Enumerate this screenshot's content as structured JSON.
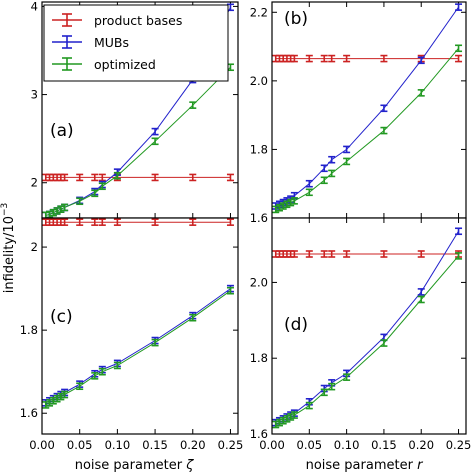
{
  "chart_data": [
    {
      "id": "a",
      "type": "line",
      "panel_label": "(a)",
      "xlim": [
        0,
        0.26
      ],
      "ylim": [
        1.6,
        4.05
      ],
      "yticks": [
        2,
        3,
        4
      ],
      "ytick_labels": [
        "2",
        "3",
        "4"
      ],
      "series": [
        {
          "name": "product bases",
          "color": "#cc2222",
          "x": [
            0.005,
            0.01,
            0.015,
            0.02,
            0.025,
            0.03,
            0.05,
            0.07,
            0.08,
            0.1,
            0.15,
            0.2,
            0.25
          ],
          "y": [
            2.06,
            2.06,
            2.06,
            2.06,
            2.06,
            2.06,
            2.06,
            2.06,
            2.06,
            2.06,
            2.06,
            2.06,
            2.06
          ]
        },
        {
          "name": "MUBs",
          "color": "#2222cc",
          "x": [
            0.005,
            0.01,
            0.015,
            0.02,
            0.025,
            0.03,
            0.05,
            0.07,
            0.08,
            0.1,
            0.15,
            0.2,
            0.25
          ],
          "y": [
            1.63,
            1.64,
            1.66,
            1.68,
            1.7,
            1.72,
            1.8,
            1.9,
            1.98,
            2.12,
            2.58,
            3.17,
            3.99
          ]
        },
        {
          "name": "optimized",
          "color": "#229922",
          "x": [
            0.005,
            0.01,
            0.015,
            0.02,
            0.025,
            0.03,
            0.05,
            0.07,
            0.08,
            0.1,
            0.15,
            0.2,
            0.25
          ],
          "y": [
            1.63,
            1.64,
            1.66,
            1.68,
            1.7,
            1.72,
            1.79,
            1.88,
            1.96,
            2.08,
            2.47,
            2.88,
            3.31
          ]
        }
      ]
    },
    {
      "id": "b",
      "type": "line",
      "panel_label": "(b)",
      "xlim": [
        0,
        0.26
      ],
      "ylim": [
        1.6,
        2.23
      ],
      "yticks": [
        1.6,
        1.8,
        2.0,
        2.2
      ],
      "ytick_labels": [
        "1.6",
        "1.8",
        "2.0",
        "2.2"
      ],
      "series": [
        {
          "name": "product bases",
          "color": "#cc2222",
          "x": [
            0.005,
            0.01,
            0.015,
            0.02,
            0.025,
            0.03,
            0.05,
            0.07,
            0.08,
            0.1,
            0.15,
            0.2,
            0.25
          ],
          "y": [
            2.065,
            2.065,
            2.065,
            2.065,
            2.065,
            2.065,
            2.065,
            2.065,
            2.065,
            2.065,
            2.065,
            2.065,
            2.065
          ]
        },
        {
          "name": "MUBs",
          "color": "#2222cc",
          "x": [
            0.005,
            0.01,
            0.015,
            0.02,
            0.025,
            0.03,
            0.05,
            0.07,
            0.08,
            0.1,
            0.15,
            0.2,
            0.25
          ],
          "y": [
            1.635,
            1.64,
            1.645,
            1.65,
            1.655,
            1.665,
            1.7,
            1.745,
            1.77,
            1.8,
            1.92,
            2.06,
            2.215
          ]
        },
        {
          "name": "optimized",
          "color": "#229922",
          "x": [
            0.005,
            0.01,
            0.015,
            0.02,
            0.025,
            0.03,
            0.05,
            0.07,
            0.08,
            0.1,
            0.15,
            0.2,
            0.25
          ],
          "y": [
            1.625,
            1.63,
            1.635,
            1.64,
            1.645,
            1.65,
            1.675,
            1.71,
            1.73,
            1.765,
            1.855,
            1.965,
            2.095
          ]
        }
      ]
    },
    {
      "id": "c",
      "type": "line",
      "panel_label": "(c)",
      "xlim": [
        0,
        0.26
      ],
      "ylim": [
        1.55,
        2.07
      ],
      "yticks": [
        1.6,
        1.8,
        2.0
      ],
      "ytick_labels": [
        "1.6",
        "1.8",
        "2"
      ],
      "xticks": [
        0,
        0.05,
        0.1,
        0.15,
        0.2,
        0.25
      ],
      "xtick_labels": [
        "0.00",
        "0.05",
        "0.10",
        "0.15",
        "0.20",
        "0.25"
      ],
      "xlabel": "noise parameter ζ",
      "series": [
        {
          "name": "product bases",
          "color": "#cc2222",
          "x": [
            0.005,
            0.01,
            0.015,
            0.02,
            0.025,
            0.03,
            0.05,
            0.07,
            0.08,
            0.1,
            0.15,
            0.2,
            0.25
          ],
          "y": [
            2.06,
            2.06,
            2.06,
            2.06,
            2.06,
            2.06,
            2.06,
            2.06,
            2.06,
            2.06,
            2.06,
            2.06,
            2.06
          ]
        },
        {
          "name": "MUBs",
          "color": "#2222cc",
          "x": [
            0.005,
            0.01,
            0.015,
            0.02,
            0.025,
            0.03,
            0.05,
            0.07,
            0.08,
            0.1,
            0.15,
            0.2,
            0.25
          ],
          "y": [
            1.625,
            1.63,
            1.635,
            1.64,
            1.645,
            1.65,
            1.67,
            1.695,
            1.705,
            1.72,
            1.775,
            1.835,
            1.9
          ]
        },
        {
          "name": "optimized",
          "color": "#229922",
          "x": [
            0.005,
            0.01,
            0.015,
            0.02,
            0.025,
            0.03,
            0.05,
            0.07,
            0.08,
            0.1,
            0.15,
            0.2,
            0.25
          ],
          "y": [
            1.62,
            1.625,
            1.63,
            1.635,
            1.64,
            1.645,
            1.665,
            1.69,
            1.7,
            1.715,
            1.77,
            1.83,
            1.895
          ]
        }
      ]
    },
    {
      "id": "d",
      "type": "line",
      "panel_label": "(d)",
      "xlim": [
        0,
        0.26
      ],
      "ylim": [
        1.6,
        2.17
      ],
      "yticks": [
        1.6,
        1.8,
        2.0
      ],
      "ytick_labels": [
        "1.6",
        "1.8",
        "2.0"
      ],
      "xticks": [
        0,
        0.05,
        0.1,
        0.15,
        0.2,
        0.25
      ],
      "xtick_labels": [
        "0.00",
        "0.05",
        "0.10",
        "0.15",
        "0.20",
        "0.25"
      ],
      "xlabel": "noise parameter r",
      "series": [
        {
          "name": "product bases",
          "color": "#cc2222",
          "x": [
            0.005,
            0.01,
            0.015,
            0.02,
            0.025,
            0.03,
            0.05,
            0.07,
            0.08,
            0.1,
            0.15,
            0.2,
            0.25
          ],
          "y": [
            2.075,
            2.075,
            2.075,
            2.075,
            2.075,
            2.075,
            2.075,
            2.075,
            2.075,
            2.075,
            2.075,
            2.075,
            2.075
          ]
        },
        {
          "name": "MUBs",
          "color": "#2222cc",
          "x": [
            0.005,
            0.01,
            0.015,
            0.02,
            0.025,
            0.03,
            0.05,
            0.07,
            0.08,
            0.1,
            0.15,
            0.2,
            0.25
          ],
          "y": [
            1.63,
            1.635,
            1.64,
            1.645,
            1.65,
            1.655,
            1.685,
            1.72,
            1.735,
            1.76,
            1.855,
            1.975,
            2.135
          ]
        },
        {
          "name": "optimized",
          "color": "#229922",
          "x": [
            0.005,
            0.01,
            0.015,
            0.02,
            0.025,
            0.03,
            0.05,
            0.07,
            0.08,
            0.1,
            0.15,
            0.2,
            0.25
          ],
          "y": [
            1.625,
            1.63,
            1.635,
            1.64,
            1.645,
            1.65,
            1.675,
            1.71,
            1.725,
            1.75,
            1.84,
            1.955,
            2.07
          ]
        }
      ]
    }
  ],
  "legend": {
    "entries": [
      "product bases",
      "MUBs",
      "optimized"
    ],
    "colors": [
      "#cc2222",
      "#2222cc",
      "#229922"
    ],
    "placement": "top-left of panel (a)"
  },
  "ylabel_text": "infidelity/10",
  "ylabel_exponent": "−3",
  "xlabel_left_text": "noise parameter ",
  "xlabel_left_symbol": "ζ",
  "xlabel_right_text": "noise parameter ",
  "xlabel_right_symbol": "r"
}
